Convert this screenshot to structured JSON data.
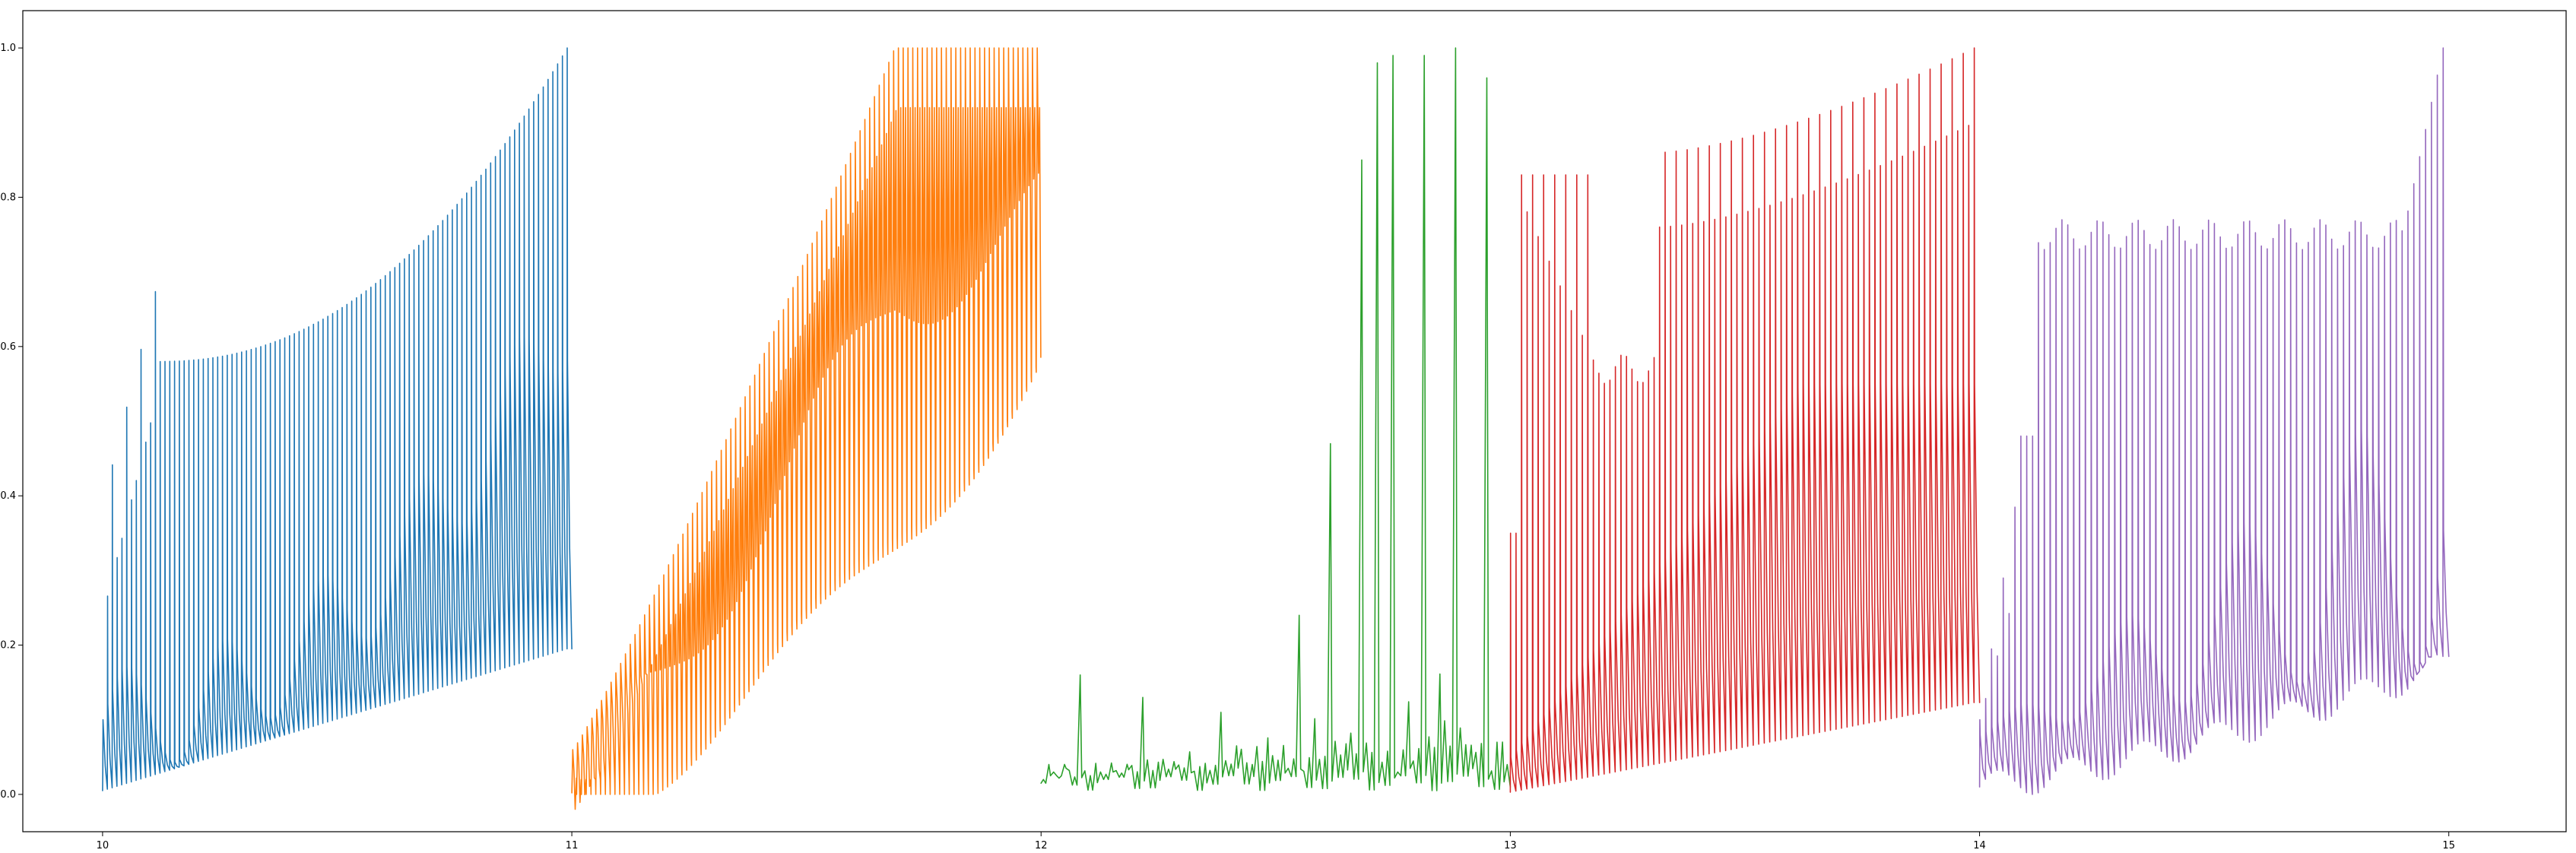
{
  "chart_data": {
    "type": "line",
    "title": "",
    "xlabel": "",
    "ylabel": "",
    "xlim": [
      9.83,
      15.25
    ],
    "ylim": [
      -0.05,
      1.05
    ],
    "grid": false,
    "legend": "none",
    "x_ticks": [
      "10",
      "11",
      "12",
      "13",
      "14",
      "15"
    ],
    "y_ticks": [
      "0.0",
      "0.2",
      "0.4",
      "0.6",
      "0.8",
      "1.0"
    ],
    "series": [
      {
        "color": "#1f77b4",
        "x_range": [
          10,
          11
        ],
        "cycles": 98,
        "form": "spike train; cycle start value rises from 0 to about 0.2; peak value rises from 0.25 to 1.0 with a step to about 0.58 near x = 10.12"
      },
      {
        "color": "#ff7f0e",
        "x_range": [
          11,
          12
        ],
        "cycles": 98,
        "form": "dense oscillation; lower envelope rises from 0 to about 0.55, upper envelope rises from 0.1 to 1.0 (saturating near x = 11.7)"
      },
      {
        "color": "#2ca02c",
        "x_range": [
          12,
          13
        ],
        "cycles": 30,
        "form": "mostly near 0.01 to 0.05 with isolated peaks, largest about 0.98 to 1.0 between x = 12.6 and 12.95"
      },
      {
        "color": "#d62728",
        "x_range": [
          13,
          14
        ],
        "cycles": 85,
        "form": "spike train; peaks about 0.83 at x = 13.05, dipping to about 0.57 near x = 13.35, rising to about 0.91 and 1.0 by x = 14"
      },
      {
        "color": "#9467bd",
        "x_range": [
          14,
          15
        ],
        "cycles": 80,
        "form": "spike train; baseline about 0.02 to 0.2, peaks rising from about 0.1 to 0.77 plateau, then to 1.0 at x = 15"
      }
    ]
  }
}
